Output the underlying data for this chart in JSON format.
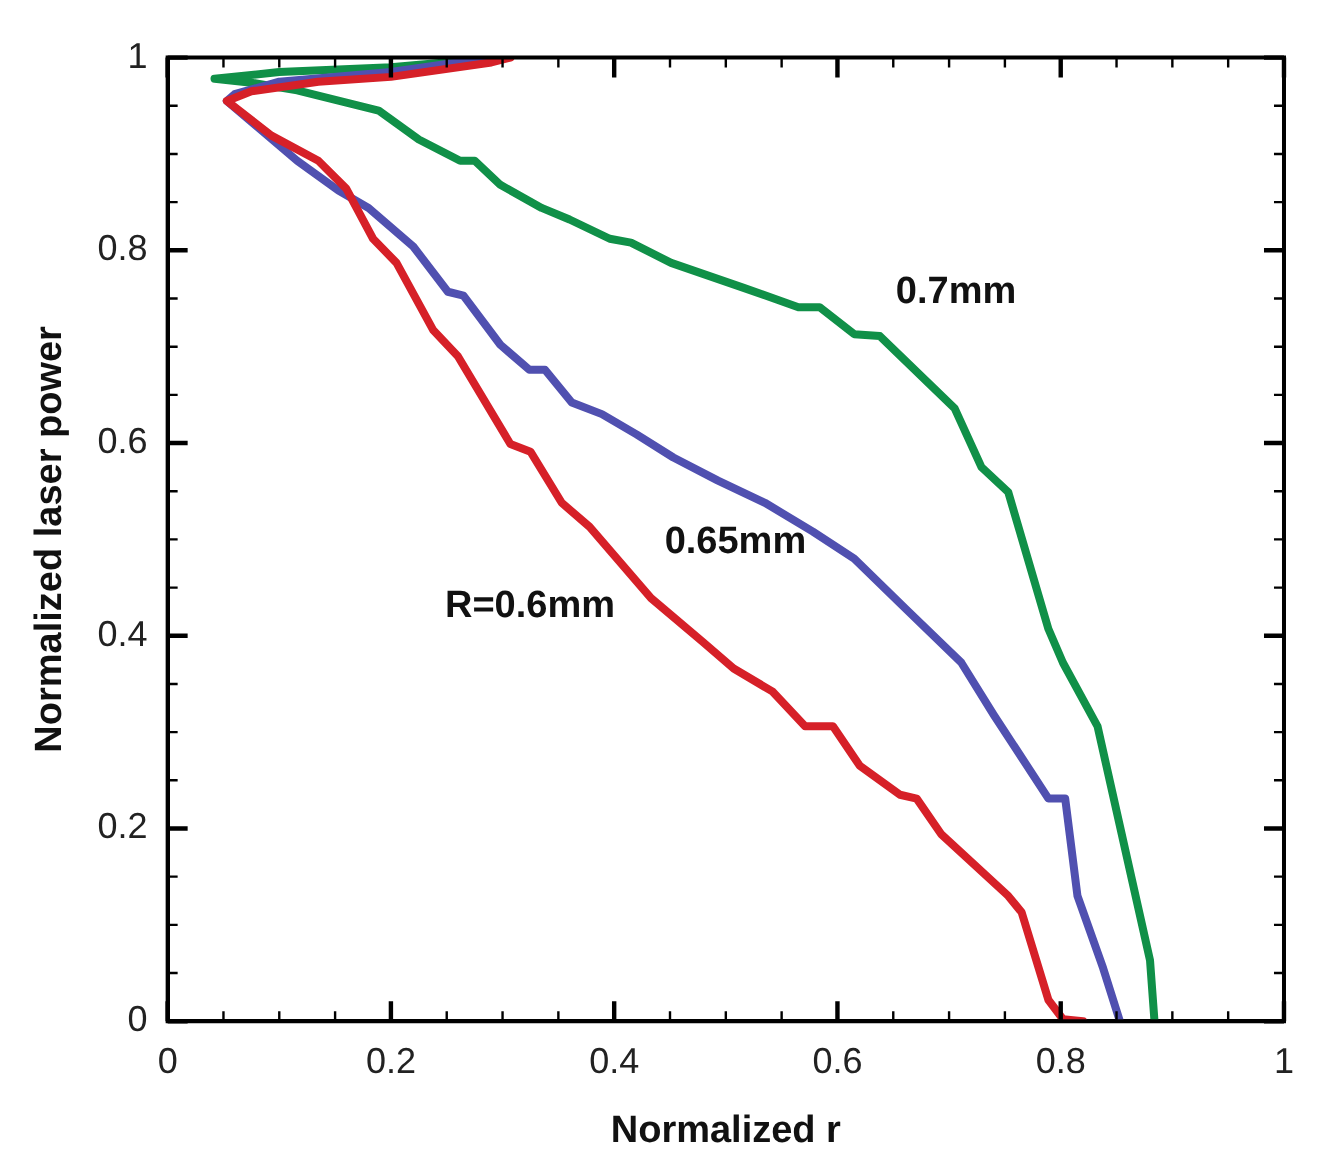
{
  "chart_data": {
    "type": "line",
    "xlabel": "Normalized r",
    "ylabel": "Normalized laser power",
    "xlim": [
      0,
      1
    ],
    "ylim": [
      0,
      1
    ],
    "xticks": [
      0,
      {
        "value": 0.05,
        "label": null
      },
      {
        "value": 0.1,
        "label": null
      },
      {
        "value": 0.15,
        "label": null
      },
      0.2,
      {
        "value": 0.25,
        "label": null
      },
      {
        "value": 0.3,
        "label": null
      },
      {
        "value": 0.35,
        "label": null
      },
      0.4,
      {
        "value": 0.45,
        "label": null
      },
      {
        "value": 0.5,
        "label": null
      },
      {
        "value": 0.55,
        "label": null
      },
      0.6,
      {
        "value": 0.65,
        "label": null
      },
      {
        "value": 0.7,
        "label": null
      },
      {
        "value": 0.75,
        "label": null
      },
      0.8,
      {
        "value": 0.85,
        "label": null
      },
      {
        "value": 0.9,
        "label": null
      },
      {
        "value": 0.95,
        "label": null
      },
      1
    ],
    "yticks": [
      0,
      {
        "value": 0.05,
        "label": null
      },
      {
        "value": 0.1,
        "label": null
      },
      {
        "value": 0.15,
        "label": null
      },
      0.2,
      {
        "value": 0.25,
        "label": null
      },
      {
        "value": 0.3,
        "label": null
      },
      {
        "value": 0.35,
        "label": null
      },
      0.4,
      {
        "value": 0.45,
        "label": null
      },
      {
        "value": 0.5,
        "label": null
      },
      {
        "value": 0.55,
        "label": null
      },
      0.6,
      {
        "value": 0.65,
        "label": null
      },
      {
        "value": 0.7,
        "label": null
      },
      {
        "value": 0.75,
        "label": null
      },
      0.8,
      {
        "value": 0.85,
        "label": null
      },
      {
        "value": 0.9,
        "label": null
      },
      {
        "value": 0.95,
        "label": null
      },
      1
    ],
    "grid": false,
    "legend": false,
    "marker": "none",
    "line_style": "solid",
    "series": [
      {
        "name": "R=0.6mm",
        "color": "#d62028",
        "x": [
          0.307,
          0.29,
          0.2,
          0.135,
          0.075,
          0.053,
          0.093,
          0.135,
          0.16,
          0.184,
          0.205,
          0.238,
          0.26,
          0.307,
          0.325,
          0.353,
          0.378,
          0.433,
          0.48,
          0.507,
          0.542,
          0.571,
          0.596,
          0.62,
          0.656,
          0.671,
          0.693,
          0.753,
          0.765,
          0.789,
          0.802,
          0.82
        ],
        "values": [
          1.0,
          0.995,
          0.98,
          0.975,
          0.965,
          0.955,
          0.919,
          0.893,
          0.864,
          0.812,
          0.787,
          0.717,
          0.69,
          0.599,
          0.591,
          0.538,
          0.513,
          0.439,
          0.393,
          0.366,
          0.342,
          0.306,
          0.306,
          0.265,
          0.235,
          0.231,
          0.194,
          0.13,
          0.113,
          0.022,
          0.002,
          0
        ]
      },
      {
        "name": "0.65mm",
        "color": "#5050b0",
        "x": [
          0.29,
          0.2,
          0.1,
          0.06,
          0.053,
          0.116,
          0.153,
          0.18,
          0.22,
          0.251,
          0.265,
          0.298,
          0.324,
          0.338,
          0.362,
          0.389,
          0.42,
          0.453,
          0.493,
          0.535,
          0.578,
          0.615,
          0.662,
          0.711,
          0.74,
          0.789,
          0.804,
          0.815,
          0.838,
          0.853
        ],
        "values": [
          1.0,
          0.985,
          0.975,
          0.962,
          0.955,
          0.893,
          0.862,
          0.844,
          0.804,
          0.757,
          0.753,
          0.702,
          0.676,
          0.676,
          0.642,
          0.63,
          0.609,
          0.585,
          0.561,
          0.538,
          0.508,
          0.48,
          0.427,
          0.372,
          0.318,
          0.231,
          0.231,
          0.13,
          0.055,
          0
        ]
      },
      {
        "name": "0.7mm",
        "color": "#109048",
        "x": [
          0.298,
          0.2,
          0.1,
          0.042,
          0.075,
          0.116,
          0.189,
          0.225,
          0.262,
          0.275,
          0.298,
          0.335,
          0.36,
          0.396,
          0.415,
          0.451,
          0.516,
          0.565,
          0.584,
          0.615,
          0.638,
          0.705,
          0.729,
          0.753,
          0.789,
          0.802,
          0.833,
          0.88,
          0.884
        ],
        "values": [
          1.0,
          0.99,
          0.985,
          0.978,
          0.974,
          0.966,
          0.945,
          0.915,
          0.893,
          0.893,
          0.868,
          0.844,
          0.832,
          0.812,
          0.808,
          0.787,
          0.761,
          0.741,
          0.741,
          0.713,
          0.711,
          0.636,
          0.575,
          0.549,
          0.407,
          0.372,
          0.306,
          0.063,
          0
        ]
      }
    ]
  }
}
